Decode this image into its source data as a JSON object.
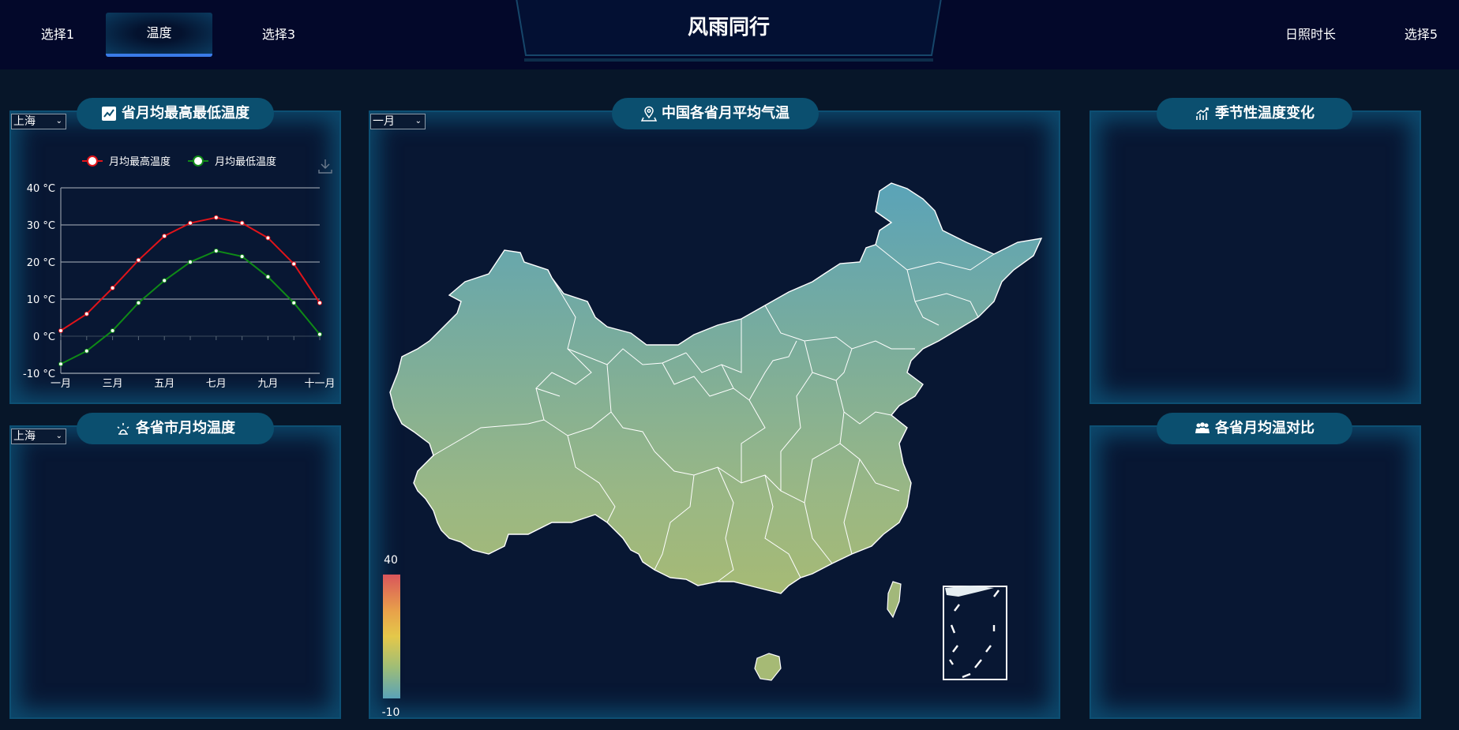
{
  "header": {
    "title": "风雨同行",
    "nav": [
      "选择1",
      "温度",
      "选择3",
      "日照时长",
      "选择5"
    ],
    "active_index": 1
  },
  "panels": {
    "left_top": {
      "title": "省月均最高最低温度",
      "select": "上海",
      "icon": "chart-icon"
    },
    "left_bottom": {
      "title": "各省市月均温度",
      "select": "上海",
      "icon": "sun-icon"
    },
    "center": {
      "title": "中国各省月平均气温",
      "select": "一月",
      "icon": "location-pin-icon"
    },
    "right_top": {
      "title": "季节性温度变化",
      "icon": "trend-icon"
    },
    "right_bottom": {
      "title": "各省月均温对比",
      "icon": "people-icon"
    }
  },
  "colors": {
    "background": "#071629",
    "header": "#03082a",
    "pill": "#0b4f6f",
    "panel_border": "#0d4f73",
    "active_nav_underline": "#3a7be8",
    "max_series": "#e0141a",
    "min_series": "#0f8a17"
  },
  "chart_data": {
    "type": "line",
    "categories": [
      "一月",
      "二月",
      "三月",
      "四月",
      "五月",
      "六月",
      "七月",
      "八月",
      "九月",
      "十月",
      "十一月"
    ],
    "x_tick_labels": [
      "一月",
      "三月",
      "五月",
      "七月",
      "九月",
      "十一月"
    ],
    "series": [
      {
        "name": "月均最高温度",
        "color": "#e0141a",
        "values": [
          1.5,
          6,
          13,
          20.5,
          27,
          30.5,
          32,
          30.5,
          26.5,
          19.5,
          9
        ]
      },
      {
        "name": "月均最低温度",
        "color": "#0f8a17",
        "values": [
          -7.5,
          -4,
          1.5,
          9,
          15,
          20,
          23,
          21.5,
          16,
          9,
          0.5
        ]
      }
    ],
    "y_ticks": [
      "40 °C",
      "30 °C",
      "20 °C",
      "10 °C",
      "0 °C",
      "-10 °C"
    ],
    "ylim": [
      -10,
      40
    ],
    "grid": true,
    "legend_position": "top"
  },
  "map": {
    "visual_map_max": "40",
    "visual_map_min": "-10",
    "gradient": [
      "#d9555b",
      "#e8b84a",
      "#e4c84a",
      "#9ebd77",
      "#5aa3b8"
    ]
  }
}
